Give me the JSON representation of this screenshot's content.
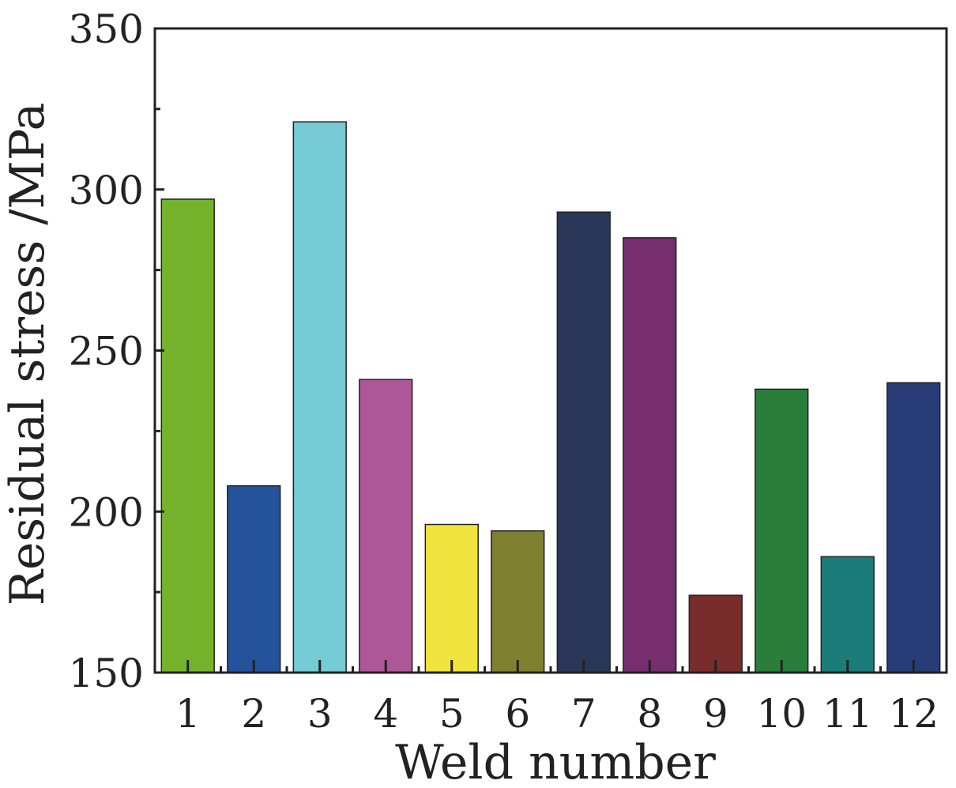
{
  "chart_data": {
    "type": "bar",
    "title": "",
    "xlabel": "Weld number",
    "ylabel": "Residual stress /MPa",
    "categories": [
      "1",
      "2",
      "3",
      "4",
      "5",
      "6",
      "7",
      "8",
      "9",
      "10",
      "11",
      "12"
    ],
    "values": [
      297,
      208,
      321,
      241,
      196,
      194,
      293,
      285,
      174,
      238,
      186,
      240
    ],
    "colors": [
      "#76b32d",
      "#24539c",
      "#75cad3",
      "#ad5799",
      "#f2e43f",
      "#7f8030",
      "#2a3758",
      "#772e6f",
      "#782d2d",
      "#2a7d3a",
      "#1b7c7a",
      "#283c78"
    ],
    "ylim": [
      150,
      350
    ],
    "yticks": [
      150,
      200,
      250,
      300,
      350
    ],
    "grid": false
  }
}
